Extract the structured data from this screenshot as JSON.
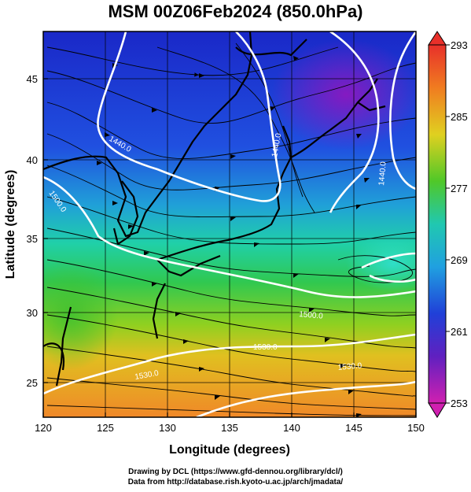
{
  "title": "MSM 00Z06Feb2024 (850.0hPa)",
  "xlabel": "Longitude (degrees)",
  "ylabel": "Latitude  (degrees)",
  "x_ticks": [
    "120",
    "125",
    "130",
    "135",
    "140",
    "145",
    "150"
  ],
  "y_ticks": [
    "25",
    "30",
    "35",
    "40",
    "45"
  ],
  "colorbar": {
    "labels": [
      "293",
      "285",
      "277",
      "269",
      "261",
      "253"
    ],
    "range": [
      253,
      293
    ]
  },
  "contours": [
    {
      "label": "1440.0"
    },
    {
      "label": "1440.0"
    },
    {
      "label": "1440.0"
    },
    {
      "label": "1500.0"
    },
    {
      "label": "1500.0"
    },
    {
      "label": "1530.0"
    },
    {
      "label": "1530.0"
    },
    {
      "label": "1530.0"
    }
  ],
  "credits": {
    "line1": "Drawing by DCL (https://www.gfd-dennou.org/library/dcl/)",
    "line2": "Data from http://database.rish.kyoto-u.ac.jp/arch/jmadata/"
  },
  "colors": {
    "cold": "#8a18c0",
    "cool": "#1f4ad8",
    "mild": "#20c8a8",
    "warm": "#3cc020",
    "hot": "#f08020"
  },
  "chart_data": {
    "type": "heatmap",
    "variable": "temperature (K) with geopotential height contours and wind streamlines",
    "x_range": [
      120,
      150
    ],
    "y_range": [
      22.5,
      48
    ],
    "color_range": [
      253,
      293
    ],
    "gridlines": true,
    "contour_levels": [
      1440.0,
      1500.0,
      1530.0
    ]
  }
}
